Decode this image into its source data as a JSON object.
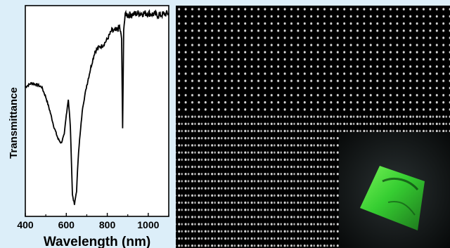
{
  "chart_data": {
    "type": "line",
    "xlabel": "Wavelength (nm)",
    "ylabel": "Transmittance",
    "xlim": [
      400,
      1100
    ],
    "xticks": [
      400,
      600,
      800,
      1000
    ],
    "yticks_shown": false,
    "grid": false,
    "series": [
      {
        "x": [
          400,
          430,
          460,
          480,
          500,
          520,
          540,
          560,
          575,
          590,
          600,
          610,
          620,
          630,
          640,
          650,
          660,
          680,
          700,
          720,
          740,
          760,
          780,
          800,
          820,
          840,
          860,
          870,
          875,
          880,
          890,
          900,
          950,
          1000,
          1050,
          1100
        ],
        "y": [
          0.62,
          0.64,
          0.63,
          0.62,
          0.57,
          0.5,
          0.42,
          0.36,
          0.34,
          0.38,
          0.48,
          0.56,
          0.42,
          0.08,
          0.03,
          0.1,
          0.3,
          0.52,
          0.63,
          0.72,
          0.8,
          0.82,
          0.83,
          0.86,
          0.9,
          0.9,
          0.92,
          0.86,
          0.4,
          0.92,
          0.99,
          0.98,
          0.99,
          0.99,
          0.98,
          0.99
        ],
        "color": "#000000"
      }
    ]
  },
  "inset_photo": {
    "description_colors": {
      "glow": "#3fe03a",
      "background": "#0b0f10"
    }
  },
  "micrograph": {
    "dot_color": "#d8d8d8",
    "background": "#000000"
  }
}
